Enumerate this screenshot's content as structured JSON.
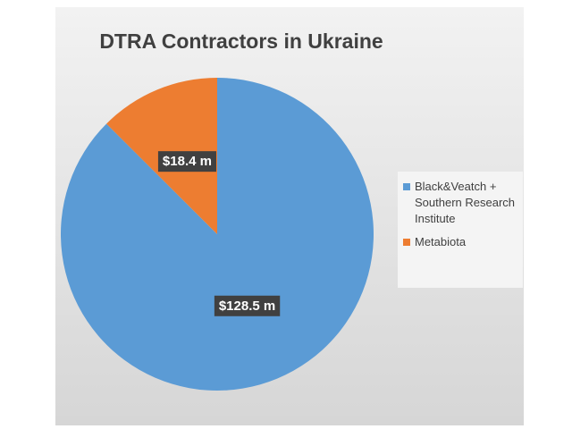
{
  "chart_data": {
    "type": "pie",
    "title": "DTRA Contractors in Ukraine",
    "categories": [
      "Black&Veatch + Southern Research Institute",
      "Metabiota"
    ],
    "values": [
      128.5,
      18.4
    ],
    "value_labels": [
      "$128.5 m",
      "$18.4 m"
    ],
    "colors": [
      "#5b9bd5",
      "#ed7d31"
    ],
    "legend": "right"
  }
}
